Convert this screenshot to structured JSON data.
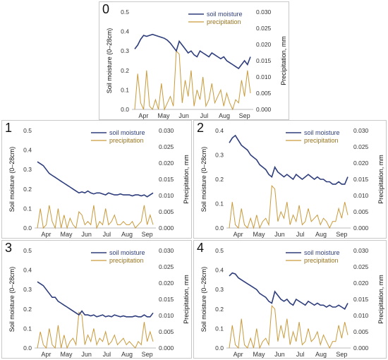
{
  "chart_data": [
    {
      "type": "line",
      "panel_label": "0",
      "ylabel_left": "Soil moisture (0–28cm)",
      "ylabel_right": "Precipitation, mm",
      "ylim_left": [
        0,
        0.5
      ],
      "ylim_right": [
        0,
        0.03
      ],
      "yticks_left": [
        "0.0",
        "0.1",
        "0.2",
        "0.3",
        "0.4",
        "0.5"
      ],
      "yticks_right": [
        "0.000",
        "0.005",
        "0.010",
        "0.015",
        "0.020",
        "0.025",
        "0.030"
      ],
      "months": [
        "Apr",
        "May",
        "Jun",
        "Jul",
        "Aug",
        "Sep"
      ],
      "legend_position": "top-right",
      "series": [
        {
          "name": "soil moisture",
          "color": "#2e3d7c",
          "values": [
            0.31,
            0.33,
            0.36,
            0.38,
            0.375,
            0.38,
            0.385,
            0.38,
            0.375,
            0.37,
            0.365,
            0.355,
            0.34,
            0.32,
            0.3,
            0.35,
            0.33,
            0.31,
            0.29,
            0.3,
            0.28,
            0.27,
            0.3,
            0.29,
            0.28,
            0.27,
            0.29,
            0.28,
            0.27,
            0.26,
            0.27,
            0.25,
            0.24,
            0.23,
            0.22,
            0.21,
            0.23,
            0.25,
            0.23,
            0.27
          ]
        },
        {
          "name": "precipitation",
          "color": "#c99a3b",
          "values": [
            0,
            0.011,
            0.002,
            0,
            0.012,
            0.001,
            0,
            0.003,
            0,
            0.008,
            0,
            0.002,
            0.004,
            0.001,
            0.018,
            0.017,
            0.002,
            0.009,
            0.004,
            0.012,
            0.001,
            0.006,
            0.003,
            0.01,
            0.001,
            0.003,
            0.008,
            0.002,
            0.004,
            0.006,
            0.001,
            0.005,
            0.002,
            0.0,
            0.003,
            0.002,
            0.009,
            0.004,
            0.012,
            0.005
          ]
        }
      ]
    },
    {
      "type": "line",
      "panel_label": "1",
      "ylabel_left": "Soil moisture (0–28cm)",
      "ylabel_right": "Precipitation, mm",
      "ylim_left": [
        0,
        0.5
      ],
      "ylim_right": [
        0,
        0.03
      ],
      "yticks_left": [
        "0.0",
        "0.1",
        "0.2",
        "0.3",
        "0.4",
        "0.5"
      ],
      "yticks_right": [
        "0.000",
        "0.005",
        "0.010",
        "0.015",
        "0.020",
        "0.025",
        "0.030"
      ],
      "months": [
        "Apr",
        "May",
        "Jun",
        "Jul",
        "Aug",
        "Sep"
      ],
      "legend_position": "top-right",
      "series": [
        {
          "name": "soil moisture",
          "color": "#2e3d7c",
          "values": [
            0.34,
            0.33,
            0.32,
            0.3,
            0.28,
            0.27,
            0.26,
            0.25,
            0.24,
            0.23,
            0.22,
            0.21,
            0.2,
            0.19,
            0.18,
            0.185,
            0.18,
            0.19,
            0.18,
            0.175,
            0.18,
            0.18,
            0.175,
            0.17,
            0.18,
            0.175,
            0.17,
            0.17,
            0.175,
            0.17,
            0.17,
            0.17,
            0.165,
            0.17,
            0.17,
            0.165,
            0.17,
            0.16,
            0.17,
            0.18
          ]
        },
        {
          "name": "precipitation",
          "color": "#c99a3b",
          "values": [
            0,
            0.006,
            0,
            0.001,
            0.007,
            0.002,
            0,
            0.006,
            0,
            0.004,
            0,
            0.003,
            0.001,
            0,
            0.005,
            0.004,
            0.001,
            0.002,
            0.001,
            0.007,
            0,
            0.002,
            0.001,
            0.006,
            0.001,
            0.002,
            0.004,
            0.001,
            0.001,
            0.002,
            0.001,
            0.001,
            0.002,
            0,
            0.001,
            0.002,
            0.007,
            0.001,
            0.004,
            0.001
          ]
        }
      ]
    },
    {
      "type": "line",
      "panel_label": "2",
      "ylabel_left": "Soil moisture (0–28cm)",
      "ylabel_right": "Precipitation, mm",
      "ylim_left": [
        0,
        0.4
      ],
      "ylim_right": [
        0,
        0.03
      ],
      "yticks_left": [
        "0.0",
        "0.1",
        "0.2",
        "0.3",
        "0.4"
      ],
      "yticks_right": [
        "0.000",
        "0.005",
        "0.010",
        "0.015",
        "0.020",
        "0.025",
        "0.030"
      ],
      "months": [
        "Apr",
        "May",
        "Jun",
        "Jul",
        "Aug",
        "Sep"
      ],
      "legend_position": "top-right",
      "series": [
        {
          "name": "soil moisture",
          "color": "#2e3d7c",
          "values": [
            0.35,
            0.37,
            0.38,
            0.36,
            0.34,
            0.33,
            0.32,
            0.3,
            0.29,
            0.28,
            0.26,
            0.25,
            0.24,
            0.22,
            0.21,
            0.25,
            0.23,
            0.22,
            0.21,
            0.22,
            0.21,
            0.2,
            0.22,
            0.21,
            0.2,
            0.21,
            0.22,
            0.21,
            0.2,
            0.21,
            0.2,
            0.2,
            0.19,
            0.19,
            0.18,
            0.18,
            0.19,
            0.18,
            0.18,
            0.21
          ]
        },
        {
          "name": "precipitation",
          "color": "#c99a3b",
          "values": [
            0,
            0.008,
            0.001,
            0,
            0.006,
            0.001,
            0,
            0.003,
            0,
            0.004,
            0,
            0.002,
            0.003,
            0.001,
            0.013,
            0.012,
            0.002,
            0.005,
            0.003,
            0.008,
            0.001,
            0.004,
            0.002,
            0.007,
            0.001,
            0.002,
            0.006,
            0.002,
            0.003,
            0.004,
            0.001,
            0.003,
            0.002,
            0,
            0.002,
            0.002,
            0.006,
            0.003,
            0.008,
            0.004
          ]
        }
      ]
    },
    {
      "type": "line",
      "panel_label": "3",
      "ylabel_left": "Soil moisture (0–28cm)",
      "ylabel_right": "Precipitation, mm",
      "ylim_left": [
        0,
        0.5
      ],
      "ylim_right": [
        0,
        0.03
      ],
      "yticks_left": [
        "0.0",
        "0.1",
        "0.2",
        "0.3",
        "0.4",
        "0.5"
      ],
      "yticks_right": [
        "0.000",
        "0.005",
        "0.010",
        "0.015",
        "0.020",
        "0.025",
        "0.030"
      ],
      "months": [
        "Apr",
        "May",
        "Jun",
        "Jul",
        "Aug",
        "Sep"
      ],
      "legend_position": "top-right",
      "series": [
        {
          "name": "soil moisture",
          "color": "#2e3d7c",
          "values": [
            0.34,
            0.33,
            0.32,
            0.3,
            0.28,
            0.26,
            0.26,
            0.24,
            0.23,
            0.22,
            0.21,
            0.2,
            0.19,
            0.18,
            0.17,
            0.19,
            0.17,
            0.17,
            0.165,
            0.17,
            0.16,
            0.165,
            0.17,
            0.16,
            0.165,
            0.16,
            0.17,
            0.165,
            0.16,
            0.165,
            0.16,
            0.16,
            0.16,
            0.165,
            0.16,
            0.16,
            0.17,
            0.16,
            0.16,
            0.18
          ]
        },
        {
          "name": "precipitation",
          "color": "#c99a3b",
          "values": [
            0,
            0.005,
            0.001,
            0,
            0.006,
            0.001,
            0,
            0.007,
            0,
            0.004,
            0,
            0.002,
            0.003,
            0.001,
            0.011,
            0.01,
            0.001,
            0.004,
            0.002,
            0.006,
            0.001,
            0.003,
            0.002,
            0.005,
            0.001,
            0.002,
            0.004,
            0.001,
            0.002,
            0.003,
            0.001,
            0.002,
            0.001,
            0,
            0.002,
            0.001,
            0.008,
            0.002,
            0.005,
            0.002
          ]
        }
      ]
    },
    {
      "type": "line",
      "panel_label": "4",
      "ylabel_left": "Soil moisture (0–28cm)",
      "ylabel_right": "Precipitation, mm",
      "ylim_left": [
        0,
        0.5
      ],
      "ylim_right": [
        0,
        0.03
      ],
      "yticks_left": [
        "0.0",
        "0.1",
        "0.2",
        "0.3",
        "0.4",
        "0.5"
      ],
      "yticks_right": [
        "0.000",
        "0.005",
        "0.010",
        "0.015",
        "0.020",
        "0.025",
        "0.030"
      ],
      "months": [
        "Apr",
        "May",
        "Jun",
        "Jul",
        "Aug",
        "Sep"
      ],
      "legend_position": "top-right",
      "series": [
        {
          "name": "soil moisture",
          "color": "#2e3d7c",
          "values": [
            0.37,
            0.385,
            0.38,
            0.36,
            0.35,
            0.34,
            0.33,
            0.32,
            0.31,
            0.3,
            0.28,
            0.27,
            0.26,
            0.24,
            0.23,
            0.29,
            0.27,
            0.25,
            0.24,
            0.25,
            0.23,
            0.22,
            0.25,
            0.24,
            0.23,
            0.22,
            0.24,
            0.23,
            0.22,
            0.23,
            0.22,
            0.22,
            0.21,
            0.22,
            0.21,
            0.21,
            0.22,
            0.21,
            0.2,
            0.23
          ]
        },
        {
          "name": "precipitation",
          "color": "#c99a3b",
          "values": [
            0,
            0.007,
            0.001,
            0,
            0.009,
            0.001,
            0,
            0.003,
            0,
            0.006,
            0,
            0.002,
            0.003,
            0.001,
            0.013,
            0.012,
            0.002,
            0.007,
            0.003,
            0.009,
            0.001,
            0.005,
            0.002,
            0.008,
            0.001,
            0.002,
            0.006,
            0.002,
            0.003,
            0.005,
            0.001,
            0.004,
            0.002,
            0,
            0.002,
            0.002,
            0.007,
            0.003,
            0.008,
            0.004
          ]
        }
      ]
    }
  ]
}
